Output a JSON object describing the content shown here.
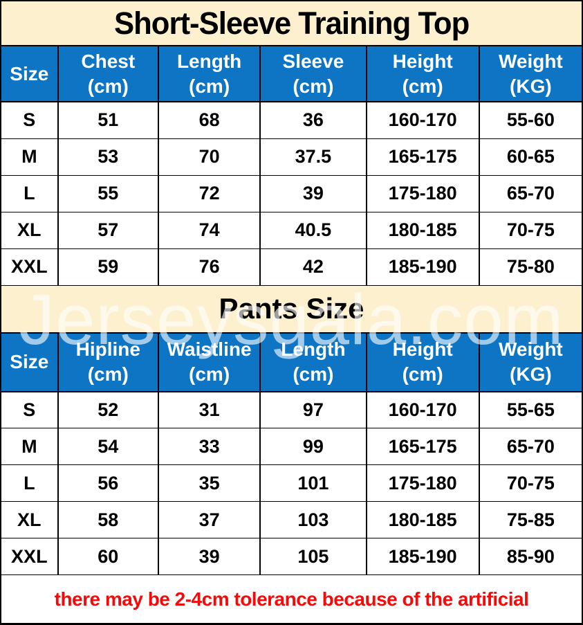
{
  "colors": {
    "header_bg": "#0e74c4",
    "banner_bg": "#fcf0cf",
    "header_text": "#ffffff",
    "body_text": "#000000",
    "footer_text": "#f60909",
    "watermark": "rgba(255,255,255,0.62)",
    "border": "#000000"
  },
  "watermark": {
    "text": "Jerseysgala.com"
  },
  "footer": {
    "note": "there may be 2-4cm tolerance because of the artificial"
  },
  "top_table": {
    "title": "Short-Sleeve Training Top",
    "headers": [
      [
        "Size",
        ""
      ],
      [
        "Chest",
        "(cm)"
      ],
      [
        "Length",
        "(cm)"
      ],
      [
        "Sleeve",
        "(cm)"
      ],
      [
        "Height",
        "(cm)"
      ],
      [
        "Weight",
        "(KG)"
      ]
    ],
    "rows": [
      [
        "S",
        "51",
        "68",
        "36",
        "160-170",
        "55-60"
      ],
      [
        "M",
        "53",
        "70",
        "37.5",
        "165-175",
        "60-65"
      ],
      [
        "L",
        "55",
        "72",
        "39",
        "175-180",
        "65-70"
      ],
      [
        "XL",
        "57",
        "74",
        "40.5",
        "180-185",
        "70-75"
      ],
      [
        "XXL",
        "59",
        "76",
        "42",
        "185-190",
        "75-80"
      ]
    ]
  },
  "pants_table": {
    "title": "Pants Size",
    "headers": [
      [
        "Size",
        ""
      ],
      [
        "Hipline",
        "(cm)"
      ],
      [
        "Waistline",
        "(cm)"
      ],
      [
        "Length",
        "(cm)"
      ],
      [
        "Height",
        "(cm)"
      ],
      [
        "Weight",
        "(KG)"
      ]
    ],
    "rows": [
      [
        "S",
        "52",
        "31",
        "97",
        "160-170",
        "55-65"
      ],
      [
        "M",
        "54",
        "33",
        "99",
        "165-175",
        "65-70"
      ],
      [
        "L",
        "56",
        "35",
        "101",
        "175-180",
        "70-75"
      ],
      [
        "XL",
        "58",
        "37",
        "103",
        "180-185",
        "75-85"
      ],
      [
        "XXL",
        "60",
        "39",
        "105",
        "185-190",
        "85-90"
      ]
    ]
  }
}
